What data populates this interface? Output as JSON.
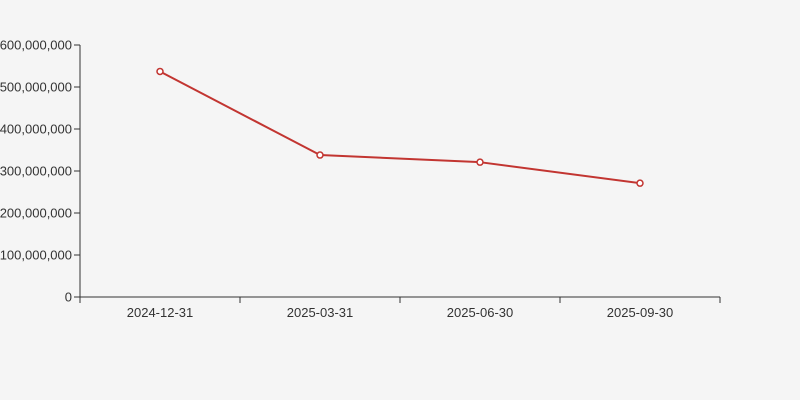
{
  "page": {
    "background": "#f5f5f5"
  },
  "chart_data": {
    "type": "line",
    "title": "",
    "xlabel": "",
    "ylabel": "",
    "categories": [
      "2024-12-31",
      "2025-03-31",
      "2025-06-30",
      "2025-09-30"
    ],
    "values": [
      537000000,
      338000000,
      321000000,
      271000000
    ],
    "ylim": [
      0,
      600000000
    ],
    "y_ticks": [
      0,
      100000000,
      200000000,
      300000000,
      400000000,
      500000000,
      600000000
    ],
    "y_tick_labels": [
      "0",
      "100,000,000",
      "200,000,000",
      "300,000,000",
      "400,000,000",
      "500,000,000",
      "600,000,000"
    ],
    "grid": false,
    "legend": "none",
    "line_color": "#c23531",
    "marker": "hollow-circle",
    "marker_fill": "#ffffff",
    "axis_color": "#333333",
    "label_color": "#333333"
  }
}
